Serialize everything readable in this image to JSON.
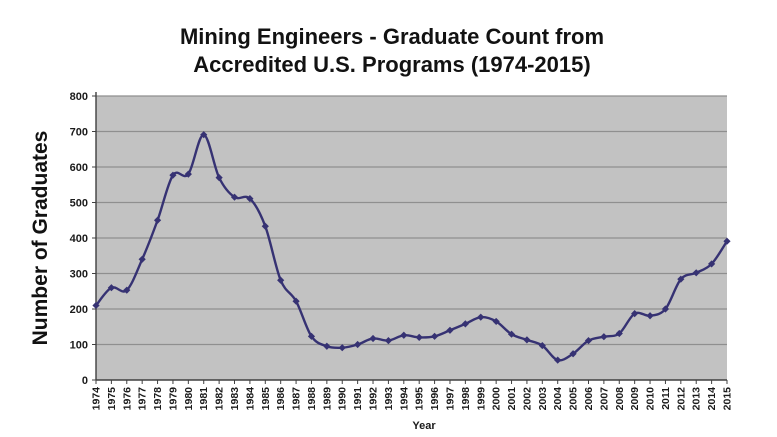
{
  "chart": {
    "title_line1": "Mining Engineers - Graduate Count from",
    "title_line2": "Accredited U.S. Programs (1974-2015)",
    "y_axis_title": "Number of Graduates",
    "x_axis_title": "Year"
  },
  "colors": {
    "plot_background": "#c2c2c2",
    "gridline": "#8f8f8f",
    "axis_line": "#404040",
    "series_line": "#363273",
    "marker_fill": "#363273",
    "title_text": "#121212",
    "page_background": "#ffffff"
  },
  "chart_data": {
    "type": "line",
    "title": "Mining Engineers - Graduate Count from Accredited U.S. Programs (1974-2015)",
    "xlabel": "Year",
    "ylabel": "Number of Graduates",
    "ylim": [
      0,
      800
    ],
    "y_ticks": [
      0,
      100,
      200,
      300,
      400,
      500,
      600,
      700,
      800
    ],
    "grid": true,
    "legend": false,
    "marker": "diamond",
    "line_smoothing": true,
    "categories": [
      "1974",
      "1975",
      "1976",
      "1977",
      "1978",
      "1979",
      "1980",
      "1981",
      "1982",
      "1983",
      "1984",
      "1985",
      "1986",
      "1987",
      "1988",
      "1989",
      "1990",
      "1991",
      "1992",
      "1993",
      "1994",
      "1995",
      "1996",
      "1997",
      "1998",
      "1999",
      "2000",
      "2001",
      "2002",
      "2003",
      "2004",
      "2005",
      "2006",
      "2007",
      "2008",
      "2009",
      "2010",
      "2011",
      "2012",
      "2013",
      "2014",
      "2015"
    ],
    "values": [
      210,
      260,
      253,
      340,
      450,
      577,
      580,
      691,
      570,
      515,
      511,
      433,
      281,
      222,
      123,
      95,
      91,
      100,
      117,
      111,
      126,
      120,
      123,
      140,
      158,
      177,
      165,
      129,
      113,
      97,
      56,
      74,
      111,
      122,
      131,
      187,
      181,
      200,
      284,
      302,
      327,
      391
    ],
    "series_name": "Graduate Count"
  }
}
